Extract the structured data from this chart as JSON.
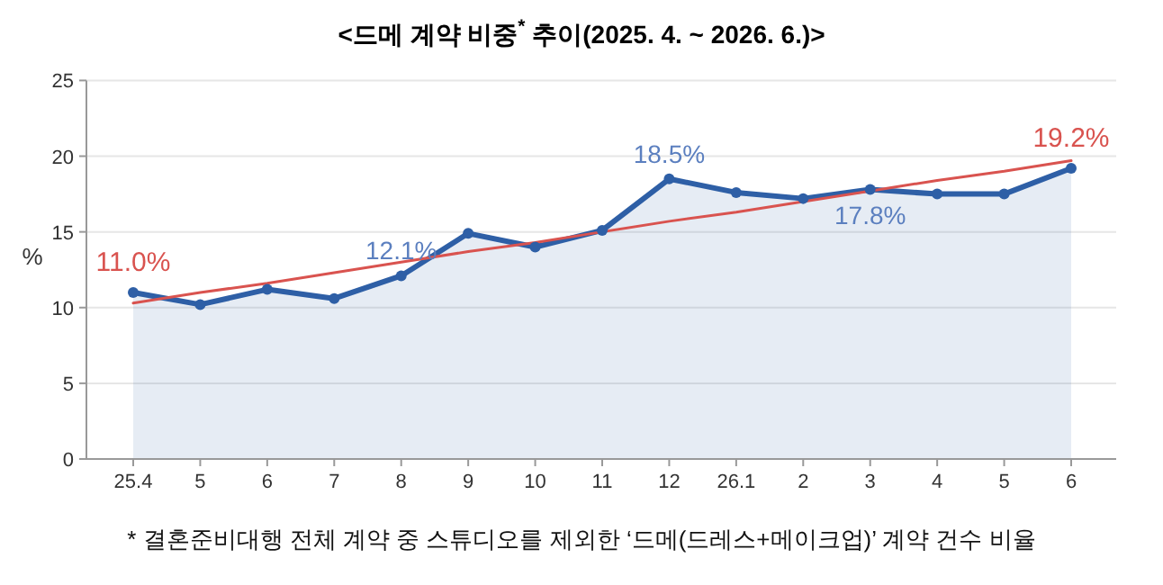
{
  "chart_data": {
    "type": "area",
    "title": "<드메 계약 비중$^{*}$ 추이(2025. 4. ~ 2026. 6.)>",
    "ylabel": "%",
    "categories": [
      "25.4",
      "5",
      "6",
      "7",
      "8",
      "9",
      "10",
      "11",
      "12",
      "26.1",
      "2",
      "3",
      "4",
      "5",
      "6"
    ],
    "series": [
      {
        "color": "#2e5fa6",
        "values": [
          11.0,
          10.2,
          11.2,
          10.6,
          12.1,
          14.9,
          14.0,
          15.1,
          18.5,
          17.6,
          17.2,
          17.8,
          17.5,
          17.5,
          19.2
        ],
        "value_labels": [
          "11.0%",
          null,
          null,
          null,
          "12.1%",
          null,
          null,
          null,
          "18.5%",
          null,
          null,
          "17.8%",
          null,
          null,
          "19.2%"
        ],
        "marker": "circle"
      },
      {
        "type": "line",
        "color": "#d9534f",
        "values": [
          10.3,
          11.0,
          11.6,
          12.3,
          13.0,
          13.7,
          14.3,
          15.0,
          15.7,
          16.3,
          17.0,
          17.7,
          18.4,
          19.0,
          19.7
        ],
        "marker": "none"
      }
    ],
    "ylim": [
      0,
      25
    ],
    "yticks": [
      0,
      5,
      10,
      15,
      20,
      25
    ],
    "grid": "y",
    "annotations": [
      "* 결혼준비대행 전체 계약 중 스튜디오를 제외한 ‘드메(드레스+메이크업)’ 계약 건수 비율"
    ]
  }
}
